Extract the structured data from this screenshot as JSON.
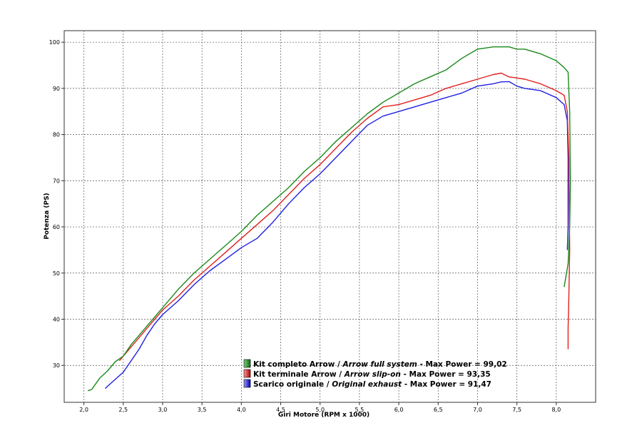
{
  "chart_data": {
    "type": "line",
    "title": "",
    "xlabel": "Giri Motore (RPM x 1000)",
    "ylabel": "Potenza (PS)",
    "xlim": [
      1.75,
      8.5
    ],
    "ylim": [
      22,
      102.5
    ],
    "x_ticks": [
      "2,0",
      "2,5",
      "3,0",
      "3,5",
      "4,0",
      "4,5",
      "5,0",
      "5,5",
      "6,0",
      "6,5",
      "7,0",
      "7,5",
      "8,0"
    ],
    "y_ticks": [
      "30",
      "40",
      "50",
      "60",
      "70",
      "80",
      "90",
      "100"
    ],
    "grid": true,
    "legend_position": "bottom-center",
    "series": [
      {
        "name": "Kit completo Arrow / Arrow full system - Max Power = 99,02",
        "legend": {
          "prefix": "Kit completo Arrow / ",
          "italic": "Arrow full system",
          "suffix": " - Max Power = 99,02"
        },
        "color": "#1a8a1a",
        "x": [
          2.05,
          2.1,
          2.2,
          2.3,
          2.4,
          2.5,
          2.6,
          2.7,
          2.8,
          2.9,
          3.0,
          3.2,
          3.4,
          3.5,
          3.6,
          3.8,
          4.0,
          4.2,
          4.4,
          4.6,
          4.8,
          5.0,
          5.2,
          5.4,
          5.6,
          5.8,
          6.0,
          6.2,
          6.4,
          6.6,
          6.8,
          7.0,
          7.2,
          7.4,
          7.5,
          7.6,
          7.8,
          8.0,
          8.1,
          8.15,
          8.17,
          8.18,
          8.17,
          8.15,
          8.1
        ],
        "y": [
          24.5,
          24.8,
          27.2,
          28.8,
          30.8,
          32.0,
          34.5,
          36.5,
          38.5,
          40.5,
          42.5,
          46.5,
          50.0,
          51.5,
          53.0,
          56.0,
          59.0,
          62.5,
          65.5,
          68.5,
          72.0,
          75.0,
          78.5,
          81.5,
          84.5,
          87.0,
          89.0,
          91.0,
          92.5,
          94.0,
          96.5,
          98.5,
          99.0,
          99.0,
          98.5,
          98.5,
          97.5,
          96.0,
          94.5,
          93.5,
          85.0,
          70.0,
          60.0,
          52.0,
          47.0
        ]
      },
      {
        "name": "Kit terminale Arrow / Arrow slip-on - Max Power = 93,35",
        "legend": {
          "prefix": "Kit terminale Arrow / ",
          "italic": "Arrow slip-on",
          "suffix": " - Max Power = 93,35"
        },
        "color": "#e02020",
        "x": [
          2.45,
          2.5,
          2.6,
          2.7,
          2.8,
          2.9,
          3.0,
          3.2,
          3.4,
          3.6,
          3.8,
          4.0,
          4.2,
          4.4,
          4.6,
          4.8,
          5.0,
          5.2,
          5.4,
          5.6,
          5.8,
          6.0,
          6.2,
          6.4,
          6.6,
          6.8,
          7.0,
          7.2,
          7.3,
          7.4,
          7.6,
          7.8,
          8.0,
          8.1,
          8.14,
          8.16,
          8.17,
          8.16,
          8.15,
          8.15
        ],
        "y": [
          31.0,
          32.0,
          34.0,
          36.0,
          38.0,
          40.0,
          42.0,
          45.0,
          48.5,
          51.5,
          54.5,
          57.5,
          60.5,
          63.5,
          67.0,
          70.5,
          73.5,
          77.0,
          80.5,
          83.5,
          86.0,
          86.5,
          87.5,
          88.5,
          90.0,
          91.0,
          92.0,
          93.0,
          93.3,
          92.5,
          92.0,
          91.0,
          89.5,
          88.5,
          85.0,
          75.0,
          55.0,
          45.0,
          38.0,
          33.5
        ]
      },
      {
        "name": "Scarico originale / Original exhaust - Max Power = 91,47",
        "legend": {
          "prefix": "Scarico originale / ",
          "italic": "Original exhaust",
          "suffix": " - Max Power = 91,47"
        },
        "color": "#2020e0",
        "x": [
          2.27,
          2.4,
          2.5,
          2.6,
          2.7,
          2.8,
          2.9,
          3.0,
          3.2,
          3.4,
          3.6,
          3.8,
          4.0,
          4.2,
          4.4,
          4.6,
          4.8,
          5.0,
          5.2,
          5.4,
          5.6,
          5.8,
          6.0,
          6.2,
          6.4,
          6.6,
          6.8,
          7.0,
          7.2,
          7.3,
          7.4,
          7.5,
          7.6,
          7.8,
          8.0,
          8.1,
          8.14,
          8.15,
          8.15,
          8.14
        ],
        "y": [
          25.0,
          27.0,
          28.5,
          31.0,
          33.5,
          36.5,
          39.0,
          41.0,
          44.0,
          47.5,
          50.5,
          53.0,
          55.5,
          57.5,
          61.0,
          65.0,
          68.5,
          71.5,
          75.0,
          78.5,
          82.0,
          84.0,
          85.0,
          86.0,
          87.0,
          88.0,
          89.0,
          90.5,
          91.0,
          91.4,
          91.47,
          90.5,
          90.0,
          89.5,
          88.0,
          86.5,
          83.0,
          75.0,
          60.0,
          55.0
        ]
      }
    ]
  }
}
